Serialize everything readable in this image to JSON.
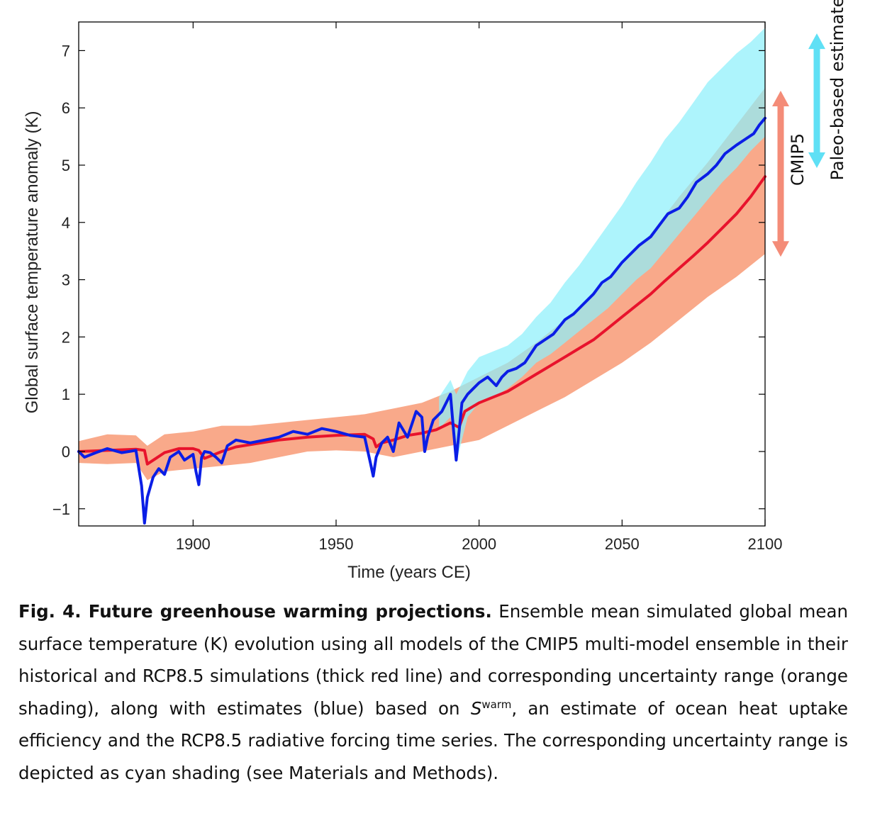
{
  "chart_data": {
    "type": "line",
    "xlabel": "Time (years CE)",
    "ylabel": "Global surface temperature anomaly (K)",
    "xlim": [
      1860,
      2100
    ],
    "ylim": [
      -1.3,
      7.5
    ],
    "xticks": [
      1900,
      1950,
      2000,
      2050,
      2100
    ],
    "yticks": [
      -1,
      0,
      1,
      2,
      3,
      4,
      5,
      6,
      7
    ],
    "ytick_labels": [
      "−1",
      "0",
      "1",
      "2",
      "3",
      "4",
      "5",
      "6",
      "7"
    ],
    "grid": false,
    "series": [
      {
        "color": "#e8132c",
        "x": [
          1860,
          1870,
          1880,
          1883,
          1884,
          1887,
          1890,
          1895,
          1900,
          1902,
          1904,
          1910,
          1915,
          1920,
          1930,
          1940,
          1950,
          1960,
          1963,
          1964,
          1966,
          1970,
          1975,
          1980,
          1985,
          1990,
          1993,
          1995,
          2000,
          2005,
          2010,
          2015,
          2020,
          2025,
          2030,
          2035,
          2040,
          2045,
          2050,
          2055,
          2060,
          2065,
          2070,
          2075,
          2080,
          2085,
          2090,
          2095,
          2100
        ],
        "values": [
          0.0,
          0.02,
          0.04,
          0.02,
          -0.22,
          -0.12,
          -0.02,
          0.05,
          0.05,
          0.02,
          -0.12,
          0.0,
          0.08,
          0.12,
          0.2,
          0.25,
          0.28,
          0.3,
          0.22,
          0.08,
          0.15,
          0.2,
          0.28,
          0.32,
          0.38,
          0.5,
          0.42,
          0.7,
          0.85,
          0.95,
          1.05,
          1.2,
          1.35,
          1.5,
          1.65,
          1.8,
          1.95,
          2.15,
          2.35,
          2.55,
          2.75,
          2.98,
          3.2,
          3.42,
          3.65,
          3.9,
          4.15,
          4.45,
          4.8
        ]
      },
      {
        "color": "#0a1ee6",
        "x": [
          1860,
          1862,
          1866,
          1870,
          1875,
          1880,
          1882,
          1883,
          1884,
          1886,
          1888,
          1890,
          1892,
          1895,
          1897,
          1900,
          1901,
          1902,
          1903,
          1904,
          1906,
          1908,
          1910,
          1911,
          1912,
          1915,
          1920,
          1925,
          1930,
          1935,
          1940,
          1945,
          1950,
          1955,
          1960,
          1962,
          1963,
          1964,
          1966,
          1968,
          1970,
          1972,
          1975,
          1978,
          1980,
          1981,
          1982,
          1984,
          1987,
          1990,
          1991,
          1992,
          1994,
          1996,
          1998,
          2000,
          2003,
          2006,
          2008,
          2010,
          2013,
          2016,
          2020,
          2023,
          2026,
          2030,
          2033,
          2036,
          2040,
          2043,
          2046,
          2050,
          2053,
          2056,
          2060,
          2063,
          2066,
          2070,
          2073,
          2076,
          2080,
          2083,
          2086,
          2090,
          2093,
          2096,
          2098,
          2100
        ],
        "values": [
          0.0,
          -0.1,
          -0.02,
          0.05,
          -0.02,
          0.02,
          -0.6,
          -1.25,
          -0.8,
          -0.45,
          -0.3,
          -0.4,
          -0.1,
          0.0,
          -0.15,
          -0.05,
          -0.35,
          -0.58,
          -0.1,
          0.0,
          -0.02,
          -0.1,
          -0.2,
          -0.05,
          0.1,
          0.2,
          0.15,
          0.2,
          0.25,
          0.35,
          0.3,
          0.4,
          0.35,
          0.28,
          0.25,
          -0.2,
          -0.43,
          -0.1,
          0.15,
          0.25,
          0.0,
          0.5,
          0.25,
          0.7,
          0.6,
          0.0,
          0.25,
          0.55,
          0.7,
          1.0,
          0.4,
          -0.15,
          0.85,
          1.0,
          1.1,
          1.2,
          1.3,
          1.15,
          1.3,
          1.4,
          1.45,
          1.55,
          1.85,
          1.95,
          2.05,
          2.3,
          2.4,
          2.55,
          2.75,
          2.95,
          3.05,
          3.3,
          3.45,
          3.6,
          3.75,
          3.95,
          4.15,
          4.25,
          4.45,
          4.7,
          4.85,
          5.0,
          5.2,
          5.35,
          5.45,
          5.55,
          5.7,
          5.82
        ]
      }
    ],
    "bands": [
      {
        "color": "#f9a98a",
        "x": [
          1860,
          1870,
          1880,
          1884,
          1890,
          1900,
          1910,
          1920,
          1930,
          1940,
          1950,
          1960,
          1970,
          1980,
          1990,
          2000,
          2010,
          2020,
          2030,
          2040,
          2050,
          2060,
          2070,
          2080,
          2090,
          2100
        ],
        "upper": [
          0.18,
          0.3,
          0.28,
          0.1,
          0.3,
          0.35,
          0.45,
          0.45,
          0.5,
          0.55,
          0.6,
          0.65,
          0.75,
          0.85,
          1.05,
          1.3,
          1.55,
          1.9,
          2.3,
          2.75,
          3.25,
          3.8,
          4.45,
          5.05,
          5.7,
          6.35
        ],
        "lower": [
          -0.2,
          -0.22,
          -0.2,
          -0.5,
          -0.35,
          -0.3,
          -0.25,
          -0.2,
          -0.1,
          0.0,
          0.02,
          0.0,
          -0.1,
          0.0,
          0.1,
          0.2,
          0.45,
          0.7,
          0.95,
          1.25,
          1.55,
          1.9,
          2.3,
          2.7,
          3.05,
          3.45
        ]
      },
      {
        "color": "#8ef0fb",
        "x": [
          1986,
          1990,
          1992,
          1996,
          2000,
          2005,
          2010,
          2015,
          2020,
          2025,
          2030,
          2035,
          2040,
          2045,
          2050,
          2055,
          2060,
          2065,
          2070,
          2075,
          2080,
          2085,
          2090,
          2095,
          2100
        ],
        "upper": [
          0.95,
          1.25,
          1.0,
          1.4,
          1.65,
          1.75,
          1.85,
          2.05,
          2.35,
          2.6,
          2.95,
          3.25,
          3.6,
          3.95,
          4.3,
          4.7,
          5.05,
          5.45,
          5.75,
          6.1,
          6.45,
          6.7,
          6.95,
          7.15,
          7.4
        ],
        "lower": [
          0.4,
          0.6,
          -0.2,
          0.6,
          0.85,
          0.95,
          1.1,
          1.3,
          1.55,
          1.7,
          1.9,
          2.1,
          2.3,
          2.5,
          2.75,
          3.0,
          3.2,
          3.5,
          3.8,
          4.1,
          4.4,
          4.7,
          4.95,
          5.25,
          5.5
        ]
      }
    ],
    "annotations": {
      "cmip5": {
        "label": "CMIP5",
        "color": "#f48c78",
        "range": [
          3.4,
          6.3
        ]
      },
      "paleo": {
        "label": "Paleo-based estimate",
        "color": "#5fe0f5",
        "range": [
          4.95,
          7.3
        ]
      }
    }
  },
  "caption": {
    "title": "Fig. 4. Future greenhouse warming projections.",
    "text_1": "Ensemble mean simulated global mean surface temperature (K) evolution using all models of the CMIP5 multi-model ensemble in their historical and RCP8.5 simulations (thick red line) and corresponding uncertainty range (orange shading), along with estimates (blue) based on",
    "symbol": "S",
    "superscript": "warm",
    "text_2": ", an estimate of ocean heat uptake efficiency and the RCP8.5 radiative forcing time series. The corresponding uncertainty range is depicted as cyan shading (see Materials and Methods)."
  }
}
